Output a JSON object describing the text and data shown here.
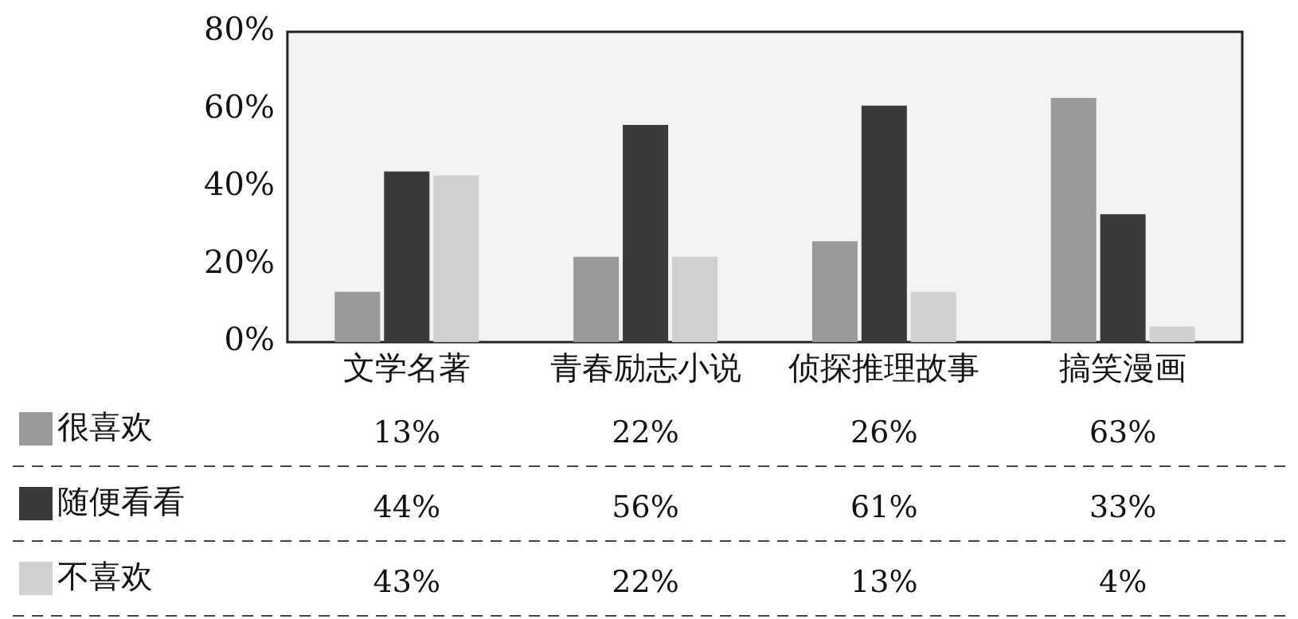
{
  "chart_data": {
    "type": "bar",
    "categories": [
      "文学名著",
      "青春励志小说",
      "侦探推理故事",
      "搞笑漫画"
    ],
    "series": [
      {
        "name": "很喜欢",
        "color": "#9a9a9a",
        "values": [
          13,
          22,
          26,
          63
        ],
        "value_labels": [
          "13%",
          "22%",
          "26%",
          "63%"
        ]
      },
      {
        "name": "随便看看",
        "color": "#3a3a3a",
        "values": [
          44,
          56,
          61,
          33
        ],
        "value_labels": [
          "44%",
          "56%",
          "61%",
          "33%"
        ]
      },
      {
        "name": "不喜欢",
        "color": "#d0d0d0",
        "values": [
          43,
          22,
          13,
          4
        ],
        "value_labels": [
          "43%",
          "22%",
          "13%",
          "4%"
        ]
      }
    ],
    "ylim": [
      0,
      80
    ],
    "yticks": [
      {
        "value": 0,
        "label": "0%"
      },
      {
        "value": 20,
        "label": "20%"
      },
      {
        "value": 40,
        "label": "40%"
      },
      {
        "value": 60,
        "label": "60%"
      },
      {
        "value": 80,
        "label": "80%"
      }
    ],
    "grid": false,
    "legend": "bottom left"
  }
}
